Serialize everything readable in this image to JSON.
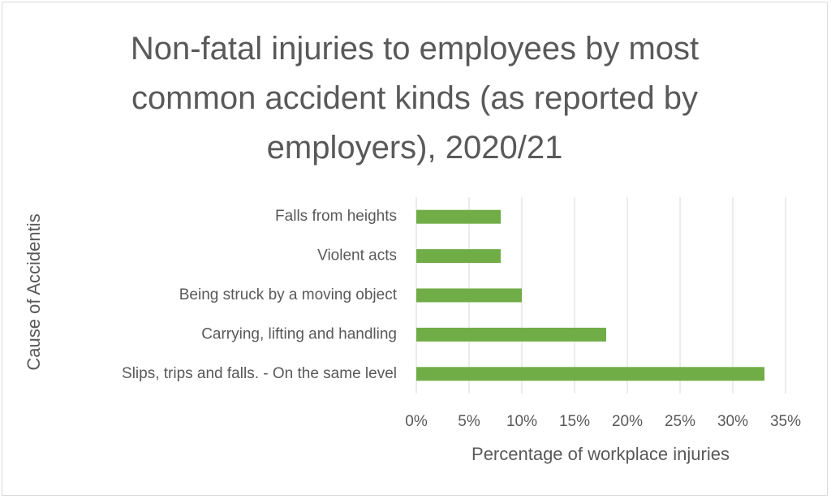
{
  "chart_data": {
    "type": "bar",
    "orientation": "horizontal",
    "title": "Non-fatal injuries to employees by most common accident kinds (as reported by employers), 2020/21",
    "x_label": "Percentage of workplace injuries",
    "y_label": "Cause of Accidentis",
    "categories": [
      "Falls from heights",
      "Violent acts",
      "Being struck by a moving object",
      "Carrying, lifting and handling",
      "Slips, trips and falls. - On the same level"
    ],
    "values": [
      8,
      8,
      10,
      18,
      33
    ],
    "color": "#70ad47",
    "xlim": [
      0,
      35
    ],
    "xticks": [
      {
        "value": 0,
        "label": "0%"
      },
      {
        "value": 5,
        "label": "5%"
      },
      {
        "value": 10,
        "label": "10%"
      },
      {
        "value": 15,
        "label": "15%"
      },
      {
        "value": 20,
        "label": "20%"
      },
      {
        "value": 25,
        "label": "25%"
      },
      {
        "value": 30,
        "label": "30%"
      },
      {
        "value": 35,
        "label": "35%"
      }
    ],
    "grid": true
  }
}
